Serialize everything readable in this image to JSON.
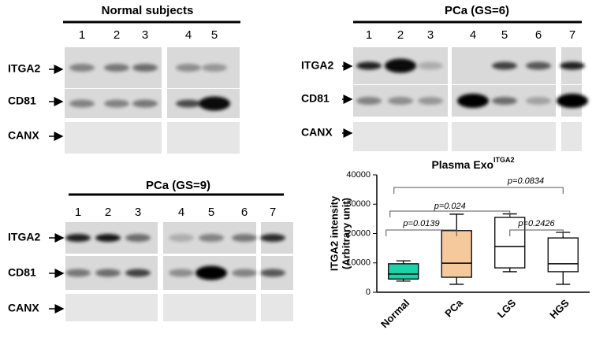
{
  "blots": [
    {
      "title": "Normal subjects",
      "lanes": [
        "1",
        "2",
        "3",
        "4",
        "5"
      ],
      "rows": [
        "ITGA2",
        "CD81",
        "CANX"
      ]
    },
    {
      "title": "PCa (GS=6)",
      "lanes": [
        "1",
        "2",
        "3",
        "4",
        "5",
        "6",
        "7"
      ],
      "rows": [
        "ITGA2",
        "CD81",
        "CANX"
      ]
    },
    {
      "title": "PCa (GS=9)",
      "lanes": [
        "1",
        "2",
        "3",
        "4",
        "5",
        "6",
        "7"
      ],
      "rows": [
        "ITGA2",
        "CD81",
        "CANX"
      ]
    }
  ],
  "chart_data": {
    "type": "box",
    "title": "Plasma Exo",
    "title_superscript": "ITGA2",
    "ylabel": [
      "ITGA2 intensity",
      "(Arbitrary unit)"
    ],
    "categories": [
      "Normal",
      "PCa",
      "LGS",
      "HGS"
    ],
    "min": [
      3800,
      2700,
      7000,
      2700
    ],
    "q1": [
      4500,
      5100,
      8300,
      7000
    ],
    "median": [
      6200,
      9900,
      15600,
      9700
    ],
    "q3": [
      9700,
      21000,
      25500,
      18500
    ],
    "max": [
      10700,
      26600,
      26700,
      20400
    ],
    "colors": [
      "#1fd1a8",
      "#f6c99c",
      "#ffffff",
      "#ffffff"
    ],
    "ylim": [
      0,
      40000
    ],
    "yticks": [
      0,
      10000,
      20000,
      30000,
      40000
    ],
    "annotations": [
      "p=0.0139",
      "p=0.024",
      "p=0.0834",
      "p=0.2426"
    ]
  }
}
